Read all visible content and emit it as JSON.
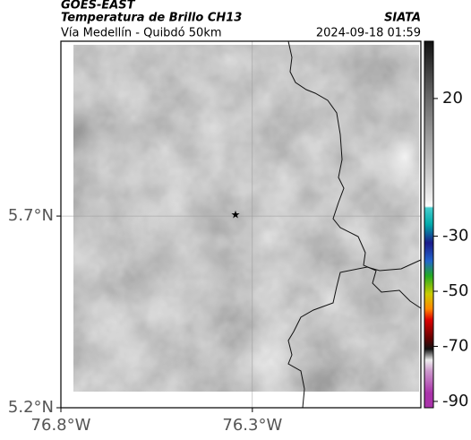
{
  "header": {
    "satellite": "GOES-EAST",
    "product": "Temperatura de Brillo CH13",
    "region": "Vía Medellín - Quibdó 50km",
    "source": "SIATA",
    "timestamp": "2024-09-18 01:59"
  },
  "map": {
    "xlim": [
      -76.8,
      -75.86
    ],
    "ylim": [
      5.2,
      6.156
    ],
    "xticks": [
      {
        "value": -76.8,
        "label": "76.8°W"
      },
      {
        "value": -76.3,
        "label": "76.3°W"
      }
    ],
    "yticks": [
      {
        "value": 5.7,
        "label": "5.7°N"
      },
      {
        "value": 5.2,
        "label": "5.2°N"
      }
    ],
    "grid": true
  },
  "colorbar": {
    "range": [
      40.8,
      -92.3
    ],
    "ticks": [
      20,
      -30,
      -50,
      -70,
      -90
    ]
  }
}
